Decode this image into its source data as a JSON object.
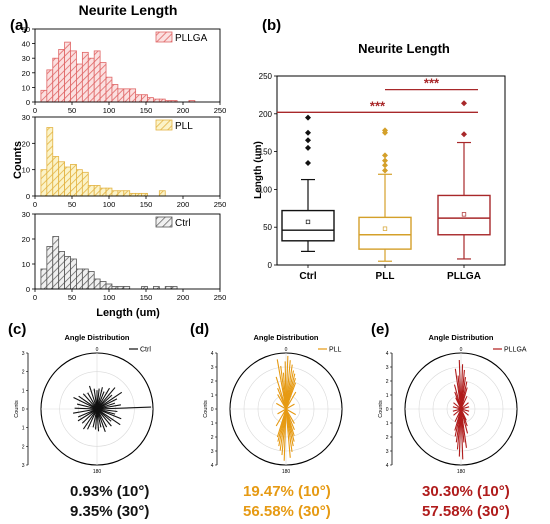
{
  "panel_letters": [
    "(a)",
    "(b)",
    "(c)",
    "(d)",
    "(e)"
  ],
  "chart_data": [
    {
      "type": "histogram",
      "panel": "(a)",
      "title": "Neurite Length",
      "xlabel": "Length (um)",
      "ylabel": "Counts",
      "xlim": [
        0,
        250
      ],
      "bin_width": 8,
      "xticks": [
        0,
        50,
        100,
        150,
        200,
        250
      ],
      "series": [
        {
          "name": "PLLGA",
          "color": "#e06666",
          "ylim": [
            0,
            50
          ],
          "yticks": [
            0,
            10,
            20,
            30,
            40,
            50
          ],
          "bin_starts": [
            8,
            16,
            24,
            32,
            40,
            48,
            56,
            64,
            72,
            80,
            88,
            96,
            104,
            112,
            120,
            128,
            136,
            144,
            152,
            160,
            168,
            176,
            184,
            192,
            200,
            208
          ],
          "counts": [
            8,
            22,
            30,
            36,
            41,
            35,
            26,
            34,
            30,
            35,
            27,
            17,
            12,
            9,
            9,
            9,
            5,
            5,
            3,
            2,
            2,
            1,
            1,
            0,
            0,
            1
          ]
        },
        {
          "name": "PLL",
          "color": "#e3b342",
          "ylim": [
            0,
            30
          ],
          "yticks": [
            0,
            10,
            20,
            30
          ],
          "bin_starts": [
            8,
            16,
            24,
            32,
            40,
            48,
            56,
            64,
            72,
            80,
            88,
            96,
            104,
            112,
            120,
            128,
            136,
            144,
            152,
            160,
            168
          ],
          "counts": [
            10,
            26,
            15,
            13,
            11,
            12,
            10,
            9,
            4,
            4,
            3,
            3,
            2,
            2,
            2,
            1,
            1,
            1,
            0,
            0,
            2
          ]
        },
        {
          "name": "Ctrl",
          "color": "#555555",
          "ylim": [
            0,
            30
          ],
          "yticks": [
            0,
            10,
            20,
            30
          ],
          "bin_starts": [
            8,
            16,
            24,
            32,
            40,
            48,
            56,
            64,
            72,
            80,
            88,
            96,
            104,
            112,
            120,
            128,
            136,
            144,
            152,
            160,
            168,
            176,
            184,
            192
          ],
          "counts": [
            8,
            17,
            21,
            15,
            13,
            12,
            8,
            8,
            7,
            4,
            3,
            2,
            1,
            1,
            1,
            0,
            0,
            1,
            0,
            1,
            0,
            1,
            1,
            0
          ]
        }
      ]
    },
    {
      "type": "box",
      "panel": "(b)",
      "title": "Neurite Length",
      "ylabel": "Length (um)",
      "ylim": [
        0,
        250
      ],
      "yticks": [
        0,
        50,
        100,
        150,
        200,
        250
      ],
      "categories": [
        "Ctrl",
        "PLL",
        "PLLGA"
      ],
      "colors": [
        "#111111",
        "#d4a02a",
        "#a8282a"
      ],
      "boxes": [
        {
          "whisker_low": 18,
          "q1": 32,
          "median": 46,
          "q3": 72,
          "whisker_high": 113,
          "mean": 57,
          "outliers": [
            135,
            155,
            165,
            175,
            195
          ]
        },
        {
          "whisker_low": 5,
          "q1": 21,
          "median": 40,
          "q3": 63,
          "whisker_high": 120,
          "mean": 48,
          "outliers": [
            125,
            132,
            138,
            145,
            175,
            178
          ]
        },
        {
          "whisker_low": 8,
          "q1": 40,
          "median": 62,
          "q3": 92,
          "whisker_high": 162,
          "mean": 67,
          "outliers": [
            173,
            214
          ]
        }
      ],
      "significance": [
        {
          "from": "PLL",
          "to": "PLLGA",
          "y": 232,
          "label": "***"
        },
        {
          "from": "Ctrl",
          "to": "PLLGA",
          "y": 202,
          "label": "***"
        }
      ]
    },
    {
      "type": "polar",
      "panel": "(c)",
      "title": "Angle Distribution",
      "legend": "Ctrl",
      "color": "#111111",
      "radial_label": "Counts",
      "rmax": 3,
      "radial_ticks": [
        3,
        2,
        1,
        0,
        1,
        2,
        3
      ],
      "angle_label": "180",
      "angle_label_top": "0",
      "angles_deg": [
        0,
        6,
        14,
        22,
        31,
        40,
        47,
        56,
        63,
        72,
        80,
        88,
        97,
        106,
        112,
        124,
        131,
        140,
        152,
        160,
        168,
        176,
        184,
        192,
        205,
        214,
        226,
        238,
        247,
        260,
        272,
        284,
        296,
        305,
        318,
        330,
        342,
        352
      ],
      "lengths": [
        1.0,
        1.1,
        1.2,
        1.0,
        1.3,
        1.5,
        1.1,
        1.6,
        1.2,
        1.0,
        1.3,
        2.9,
        1.1,
        1.0,
        1.4,
        1.5,
        1.0,
        1.2,
        1.1,
        1.3,
        1.0,
        1.2,
        1.1,
        1.0,
        1.2,
        1.3,
        1.1,
        1.2,
        1.1,
        1.3,
        1.2,
        1.1,
        1.4,
        1.2,
        1.1,
        1.0,
        1.3,
        1.1
      ],
      "stats": [
        "0.93% (10°)",
        "9.35% (30°)"
      ]
    },
    {
      "type": "polar",
      "panel": "(d)",
      "title": "Angle Distribution",
      "legend": "PLL",
      "color": "#e69a13",
      "radial_label": "Counts",
      "rmax": 4,
      "radial_ticks": [
        4,
        3,
        2,
        1,
        0,
        1,
        2,
        3,
        4
      ],
      "angle_label": "180",
      "angle_label_top": "0",
      "angles_deg": [
        2,
        5,
        8,
        11,
        14,
        17,
        20,
        350,
        353,
        356,
        359,
        343,
        338,
        30,
        330,
        60,
        300,
        182,
        185,
        188,
        191,
        194,
        197,
        175,
        172,
        169,
        166,
        163,
        158,
        210,
        150,
        240,
        120
      ],
      "lengths": [
        3.8,
        3.5,
        3.2,
        2.8,
        2.6,
        2.3,
        2.0,
        3.6,
        3.1,
        2.6,
        3.4,
        2.4,
        1.6,
        1.4,
        1.2,
        0.7,
        0.8,
        3.7,
        3.3,
        3.0,
        2.7,
        2.4,
        2.1,
        3.5,
        3.1,
        2.7,
        2.4,
        2.0,
        1.6,
        1.4,
        1.2,
        0.7,
        0.8
      ],
      "stats": [
        "19.47% (10°)",
        "56.58% (30°)"
      ]
    },
    {
      "type": "polar",
      "panel": "(e)",
      "title": "Angle Distribution",
      "legend": "PLLGA",
      "color": "#b01c1c",
      "radial_label": "Counts",
      "rmax": 4,
      "radial_ticks": [
        4,
        3,
        2,
        1,
        0,
        1,
        2,
        3,
        4
      ],
      "angle_label": "180",
      "angle_label_top": "0",
      "angles_deg": [
        2,
        5,
        8,
        12,
        16,
        352,
        355,
        358,
        345,
        340,
        25,
        335,
        50,
        310,
        75,
        285,
        182,
        185,
        188,
        192,
        196,
        172,
        175,
        178,
        165,
        160,
        205,
        155,
        230,
        130,
        255,
        105
      ],
      "lengths": [
        3.2,
        2.8,
        2.3,
        2.0,
        1.6,
        2.9,
        2.4,
        3.5,
        1.8,
        1.3,
        1.0,
        0.9,
        0.7,
        0.7,
        0.6,
        0.6,
        3.4,
        2.9,
        2.4,
        2.0,
        1.6,
        2.8,
        2.4,
        3.6,
        1.8,
        1.3,
        1.0,
        0.9,
        0.7,
        0.7,
        0.6,
        0.6
      ],
      "stats": [
        "30.30% (10°)",
        "57.58% (30°)"
      ]
    }
  ]
}
